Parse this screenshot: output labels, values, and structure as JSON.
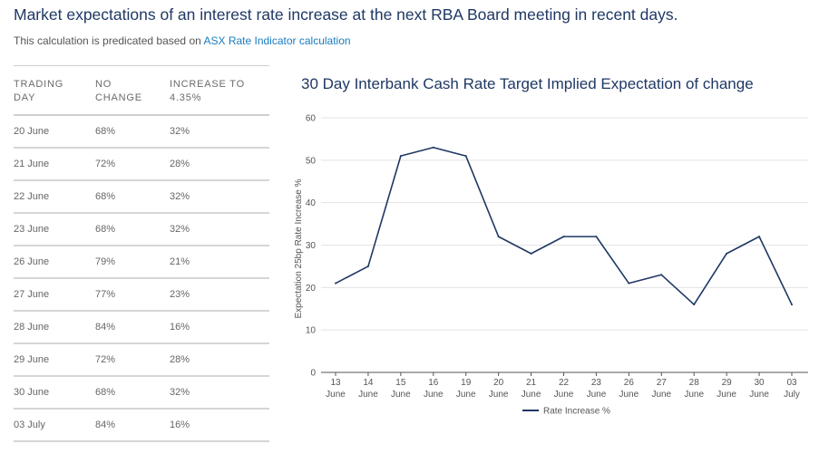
{
  "header": {
    "title": "Market expectations of an interest rate increase at the next RBA Board meeting in recent days.",
    "subtitle_prefix": "This calculation is predicated based on ",
    "subtitle_link": "ASX Rate Indicator calculation"
  },
  "table": {
    "headers": [
      [
        "TRADING",
        "DAY"
      ],
      [
        "NO",
        "CHANGE"
      ],
      [
        "INCREASE TO",
        "4.35%"
      ]
    ],
    "rows": [
      [
        "20 June",
        "68%",
        "32%"
      ],
      [
        "21 June",
        "72%",
        "28%"
      ],
      [
        "22 June",
        "68%",
        "32%"
      ],
      [
        "23 June",
        "68%",
        "32%"
      ],
      [
        "26 June",
        "79%",
        "21%"
      ],
      [
        "27 June",
        "77%",
        "23%"
      ],
      [
        "28 June",
        "84%",
        "16%"
      ],
      [
        "29 June",
        "72%",
        "28%"
      ],
      [
        "30 June",
        "68%",
        "32%"
      ],
      [
        "03 July",
        "84%",
        "16%"
      ]
    ]
  },
  "chart_data": {
    "type": "line",
    "title": "30 Day Interbank Cash Rate Target Implied Expectation of change",
    "xlabel": "",
    "ylabel": "Expectation 25bp Rate Increase %",
    "categories": [
      [
        "13",
        "June"
      ],
      [
        "14",
        "June"
      ],
      [
        "15",
        "June"
      ],
      [
        "16",
        "June"
      ],
      [
        "19",
        "June"
      ],
      [
        "20",
        "June"
      ],
      [
        "21",
        "June"
      ],
      [
        "22",
        "June"
      ],
      [
        "23",
        "June"
      ],
      [
        "26",
        "June"
      ],
      [
        "27",
        "June"
      ],
      [
        "28",
        "June"
      ],
      [
        "29",
        "June"
      ],
      [
        "30",
        "June"
      ],
      [
        "03",
        "July"
      ]
    ],
    "series": [
      {
        "name": "Rate Increase %",
        "values": [
          21,
          25,
          51,
          53,
          51,
          32,
          28,
          32,
          32,
          21,
          23,
          16,
          28,
          32,
          16
        ],
        "color": "#1f3864"
      }
    ],
    "ylim": [
      0,
      60
    ],
    "yticks": [
      0,
      10,
      20,
      30,
      40,
      50,
      60
    ],
    "grid": true,
    "legend": "bottom-center"
  }
}
